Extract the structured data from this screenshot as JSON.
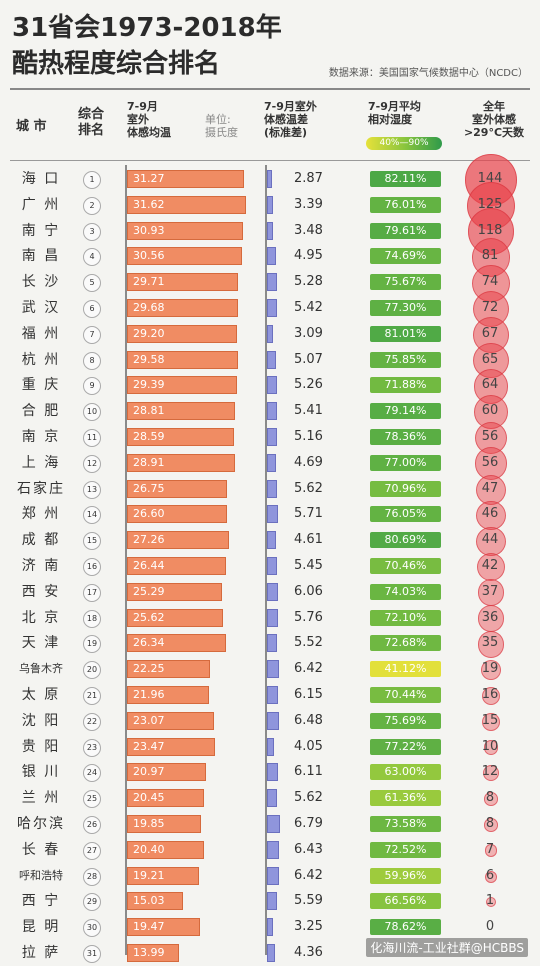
{
  "title_line1": "31省会1973-2018年",
  "title_line2": "酷热程度综合排名",
  "source": "数据来源：美国国家气候数据中心（NCDC）",
  "headers": {
    "city": "城 市",
    "rank": "综合\n排名",
    "temp": "7-9月\n室外\n体感均温",
    "temp_unit": "单位:\n摄氏度",
    "std": "7-9月室外\n体感温差\n(标准差)",
    "humidity": "7-9月平均\n相对湿度",
    "humidity_range": "40%—90%",
    "days": "全年\n室外体感\n>29°C天数"
  },
  "watermark": "化海川流-工业社群@HCBBS",
  "chart_data": {
    "type": "table",
    "columns": [
      "城市",
      "综合排名",
      "7-9月室外体感均温",
      "7-9月室外体感温差(标准差)",
      "7-9月平均相对湿度",
      "全年室外体感>29°C天数"
    ],
    "rows": [
      {
        "city": "海 口",
        "rank": "1",
        "temp": "31.27",
        "std": "2.87",
        "humidity": "82.11%",
        "days": "144"
      },
      {
        "city": "广 州",
        "rank": "2",
        "temp": "31.62",
        "std": "3.39",
        "humidity": "76.01%",
        "days": "125"
      },
      {
        "city": "南 宁",
        "rank": "3",
        "temp": "30.93",
        "std": "3.48",
        "humidity": "79.61%",
        "days": "118"
      },
      {
        "city": "南 昌",
        "rank": "4",
        "temp": "30.56",
        "std": "4.95",
        "humidity": "74.69%",
        "days": "81"
      },
      {
        "city": "长 沙",
        "rank": "5",
        "temp": "29.71",
        "std": "5.28",
        "humidity": "75.67%",
        "days": "74"
      },
      {
        "city": "武 汉",
        "rank": "6",
        "temp": "29.68",
        "std": "5.42",
        "humidity": "77.30%",
        "days": "72"
      },
      {
        "city": "福 州",
        "rank": "7",
        "temp": "29.20",
        "std": "3.09",
        "humidity": "81.01%",
        "days": "67"
      },
      {
        "city": "杭 州",
        "rank": "8",
        "temp": "29.58",
        "std": "5.07",
        "humidity": "75.85%",
        "days": "65"
      },
      {
        "city": "重 庆",
        "rank": "9",
        "temp": "29.39",
        "std": "5.26",
        "humidity": "71.88%",
        "days": "64"
      },
      {
        "city": "合 肥",
        "rank": "10",
        "temp": "28.81",
        "std": "5.41",
        "humidity": "79.14%",
        "days": "60"
      },
      {
        "city": "南 京",
        "rank": "11",
        "temp": "28.59",
        "std": "5.16",
        "humidity": "78.36%",
        "days": "56"
      },
      {
        "city": "上 海",
        "rank": "12",
        "temp": "28.91",
        "std": "4.69",
        "humidity": "77.00%",
        "days": "56"
      },
      {
        "city": "石家庄",
        "rank": "13",
        "temp": "26.75",
        "std": "5.62",
        "humidity": "70.96%",
        "days": "47"
      },
      {
        "city": "郑 州",
        "rank": "14",
        "temp": "26.60",
        "std": "5.71",
        "humidity": "76.05%",
        "days": "46"
      },
      {
        "city": "成 都",
        "rank": "15",
        "temp": "27.26",
        "std": "4.61",
        "humidity": "80.69%",
        "days": "44"
      },
      {
        "city": "济 南",
        "rank": "16",
        "temp": "26.44",
        "std": "5.45",
        "humidity": "70.46%",
        "days": "42"
      },
      {
        "city": "西 安",
        "rank": "17",
        "temp": "25.29",
        "std": "6.06",
        "humidity": "74.03%",
        "days": "37"
      },
      {
        "city": "北 京",
        "rank": "18",
        "temp": "25.62",
        "std": "5.76",
        "humidity": "72.10%",
        "days": "36"
      },
      {
        "city": "天 津",
        "rank": "19",
        "temp": "26.34",
        "std": "5.52",
        "humidity": "72.68%",
        "days": "35"
      },
      {
        "city": "乌鲁木齐",
        "rank": "20",
        "temp": "22.25",
        "std": "6.42",
        "humidity": "41.12%",
        "days": "19"
      },
      {
        "city": "太 原",
        "rank": "21",
        "temp": "21.96",
        "std": "6.15",
        "humidity": "70.44%",
        "days": "16"
      },
      {
        "city": "沈 阳",
        "rank": "22",
        "temp": "23.07",
        "std": "6.48",
        "humidity": "75.69%",
        "days": "15"
      },
      {
        "city": "贵 阳",
        "rank": "23",
        "temp": "23.47",
        "std": "4.05",
        "humidity": "77.22%",
        "days": "10"
      },
      {
        "city": "银 川",
        "rank": "24",
        "temp": "20.97",
        "std": "6.11",
        "humidity": "63.00%",
        "days": "12"
      },
      {
        "city": "兰 州",
        "rank": "25",
        "temp": "20.45",
        "std": "5.62",
        "humidity": "61.36%",
        "days": "8"
      },
      {
        "city": "哈尔滨",
        "rank": "26",
        "temp": "19.85",
        "std": "6.79",
        "humidity": "73.58%",
        "days": "8"
      },
      {
        "city": "长 春",
        "rank": "27",
        "temp": "20.40",
        "std": "6.43",
        "humidity": "72.52%",
        "days": "7"
      },
      {
        "city": "呼和浩特",
        "rank": "28",
        "temp": "19.21",
        "std": "6.42",
        "humidity": "59.96%",
        "days": "6"
      },
      {
        "city": "西 宁",
        "rank": "29",
        "temp": "15.03",
        "std": "5.59",
        "humidity": "66.56%",
        "days": "1"
      },
      {
        "city": "昆 明",
        "rank": "30",
        "temp": "19.47",
        "std": "3.25",
        "humidity": "78.62%",
        "days": "0"
      },
      {
        "city": "拉 萨",
        "rank": "31",
        "temp": "13.99",
        "std": "4.36",
        "humidity": "",
        "days": ""
      }
    ]
  },
  "colors": {
    "temp_bar": "#f08c63",
    "std_bar": "#8f95dc",
    "humidity_low": "#e6e13a",
    "humidity_high": "#2f9a4a",
    "days_circle": "#e8424a"
  }
}
